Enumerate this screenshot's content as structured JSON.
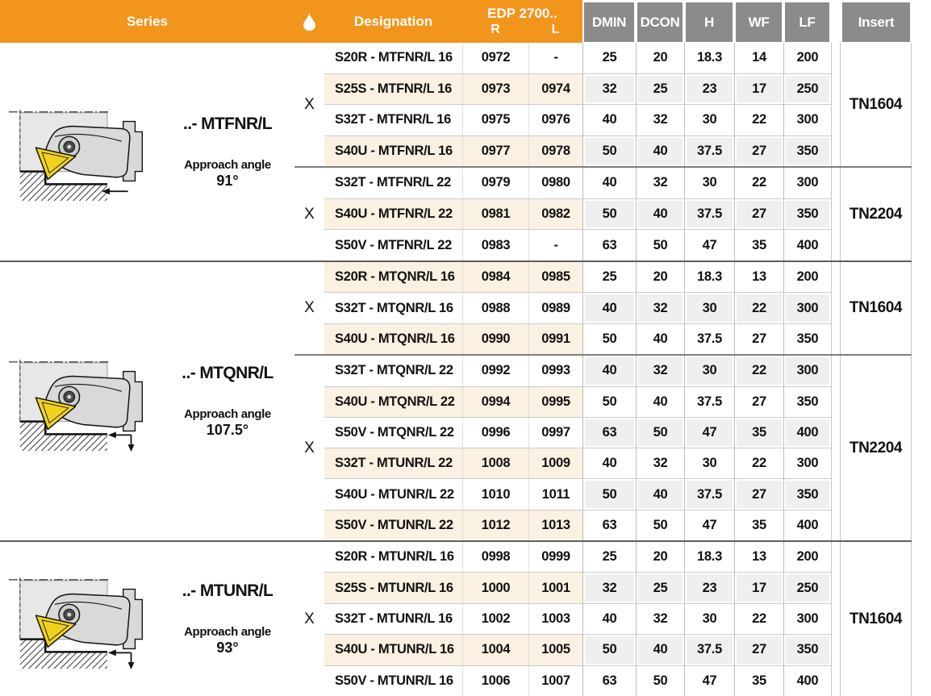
{
  "header": {
    "series": "Series",
    "coolant_icon": "droplet-icon",
    "designation": "Designation",
    "edp_title": "EDP 2700..",
    "edp_r": "R",
    "edp_l": "L",
    "dims": [
      "DMIN",
      "DCON",
      "H",
      "WF",
      "LF"
    ],
    "insert": "Insert"
  },
  "colors": {
    "header_orange": "#F2951C",
    "header_gray": "#8B8B8B",
    "row_beige": "#FBF1E2",
    "cell_gray": "#EFEFEF",
    "insert_yellow": "#F0D21E",
    "text": "#111111"
  },
  "groups": [
    {
      "series_name": "..- MTFNR/L",
      "approach_label": "Approach angle",
      "approach_angle": "91°",
      "arrow_icon": "left-arrow",
      "subgroups": [
        {
          "coolant": "X",
          "insert": "TN1604",
          "rows": [
            {
              "designation": "S20R - MTFNR/L 16",
              "edp_r": "0972",
              "edp_l": "-",
              "dmin": "25",
              "dcon": "20",
              "h": "18.3",
              "wf": "14",
              "lf": "200",
              "left_shaded": false,
              "right_shaded": false
            },
            {
              "designation": "S25S - MTFNR/L 16",
              "edp_r": "0973",
              "edp_l": "0974",
              "dmin": "32",
              "dcon": "25",
              "h": "23",
              "wf": "17",
              "lf": "250",
              "left_shaded": true,
              "right_shaded": true
            },
            {
              "designation": "S32T - MTFNR/L 16",
              "edp_r": "0975",
              "edp_l": "0976",
              "dmin": "40",
              "dcon": "32",
              "h": "30",
              "wf": "22",
              "lf": "300",
              "left_shaded": false,
              "right_shaded": false
            },
            {
              "designation": "S40U - MTFNR/L 16",
              "edp_r": "0977",
              "edp_l": "0978",
              "dmin": "50",
              "dcon": "40",
              "h": "37.5",
              "wf": "27",
              "lf": "350",
              "left_shaded": true,
              "right_shaded": true
            }
          ]
        },
        {
          "coolant": "X",
          "insert": "TN2204",
          "rows": [
            {
              "designation": "S32T - MTFNR/L 22",
              "edp_r": "0979",
              "edp_l": "0980",
              "dmin": "40",
              "dcon": "32",
              "h": "30",
              "wf": "22",
              "lf": "300",
              "left_shaded": false,
              "right_shaded": false
            },
            {
              "designation": "S40U - MTFNR/L 22",
              "edp_r": "0981",
              "edp_l": "0982",
              "dmin": "50",
              "dcon": "40",
              "h": "37.5",
              "wf": "27",
              "lf": "350",
              "left_shaded": true,
              "right_shaded": true
            },
            {
              "designation": "S50V - MTFNR/L 22",
              "edp_r": "0983",
              "edp_l": "-",
              "dmin": "63",
              "dcon": "50",
              "h": "47",
              "wf": "35",
              "lf": "400",
              "left_shaded": false,
              "right_shaded": false
            }
          ]
        }
      ]
    },
    {
      "series_name": "..- MTQNR/L",
      "approach_label": "Approach angle",
      "approach_angle": "107.5°",
      "arrow_icon": "left-down-arrow",
      "subgroups": [
        {
          "coolant": "X",
          "insert": "TN1604",
          "rows": [
            {
              "designation": "S20R - MTQNR/L 16",
              "edp_r": "0984",
              "edp_l": "0985",
              "dmin": "25",
              "dcon": "20",
              "h": "18.3",
              "wf": "13",
              "lf": "200",
              "left_shaded": true,
              "right_shaded": false
            },
            {
              "designation": "S32T - MTQNR/L 16",
              "edp_r": "0988",
              "edp_l": "0989",
              "dmin": "40",
              "dcon": "32",
              "h": "30",
              "wf": "22",
              "lf": "300",
              "left_shaded": false,
              "right_shaded": true
            },
            {
              "designation": "S40U - MTQNR/L 16",
              "edp_r": "0990",
              "edp_l": "0991",
              "dmin": "50",
              "dcon": "40",
              "h": "37.5",
              "wf": "27",
              "lf": "350",
              "left_shaded": true,
              "right_shaded": false
            }
          ]
        },
        {
          "coolant": "X",
          "insert": "TN2204",
          "rows": [
            {
              "designation": "S32T - MTQNR/L 22",
              "edp_r": "0992",
              "edp_l": "0993",
              "dmin": "40",
              "dcon": "32",
              "h": "30",
              "wf": "22",
              "lf": "300",
              "left_shaded": false,
              "right_shaded": true
            },
            {
              "designation": "S40U - MTQNR/L 22",
              "edp_r": "0994",
              "edp_l": "0995",
              "dmin": "50",
              "dcon": "40",
              "h": "37.5",
              "wf": "27",
              "lf": "350",
              "left_shaded": true,
              "right_shaded": false
            },
            {
              "designation": "S50V - MTQNR/L 22",
              "edp_r": "0996",
              "edp_l": "0997",
              "dmin": "63",
              "dcon": "50",
              "h": "47",
              "wf": "35",
              "lf": "400",
              "left_shaded": false,
              "right_shaded": true
            },
            {
              "designation": "S32T - MTUNR/L 22",
              "edp_r": "1008",
              "edp_l": "1009",
              "dmin": "40",
              "dcon": "32",
              "h": "30",
              "wf": "22",
              "lf": "300",
              "left_shaded": true,
              "right_shaded": false
            },
            {
              "designation": "S40U - MTUNR/L 22",
              "edp_r": "1010",
              "edp_l": "1011",
              "dmin": "50",
              "dcon": "40",
              "h": "37.5",
              "wf": "27",
              "lf": "350",
              "left_shaded": false,
              "right_shaded": true
            },
            {
              "designation": "S50V - MTUNR/L 22",
              "edp_r": "1012",
              "edp_l": "1013",
              "dmin": "63",
              "dcon": "50",
              "h": "47",
              "wf": "35",
              "lf": "400",
              "left_shaded": true,
              "right_shaded": false
            }
          ]
        }
      ]
    },
    {
      "series_name": "..- MTUNR/L",
      "approach_label": "Approach angle",
      "approach_angle": "93°",
      "arrow_icon": "left-down-arrow",
      "subgroups": [
        {
          "coolant": "X",
          "insert": "TN1604",
          "rows": [
            {
              "designation": "S20R - MTUNR/L 16",
              "edp_r": "0998",
              "edp_l": "0999",
              "dmin": "25",
              "dcon": "20",
              "h": "18.3",
              "wf": "13",
              "lf": "200",
              "left_shaded": false,
              "right_shaded": false
            },
            {
              "designation": "S25S - MTUNR/L 16",
              "edp_r": "1000",
              "edp_l": "1001",
              "dmin": "32",
              "dcon": "25",
              "h": "23",
              "wf": "17",
              "lf": "250",
              "left_shaded": true,
              "right_shaded": true
            },
            {
              "designation": "S32T - MTUNR/L 16",
              "edp_r": "1002",
              "edp_l": "1003",
              "dmin": "40",
              "dcon": "32",
              "h": "30",
              "wf": "22",
              "lf": "300",
              "left_shaded": false,
              "right_shaded": false
            },
            {
              "designation": "S40U - MTUNR/L 16",
              "edp_r": "1004",
              "edp_l": "1005",
              "dmin": "50",
              "dcon": "40",
              "h": "37.5",
              "wf": "27",
              "lf": "350",
              "left_shaded": true,
              "right_shaded": true
            },
            {
              "designation": "S50V - MTUNR/L 16",
              "edp_r": "1006",
              "edp_l": "1007",
              "dmin": "63",
              "dcon": "50",
              "h": "47",
              "wf": "35",
              "lf": "400",
              "left_shaded": false,
              "right_shaded": false
            }
          ]
        }
      ]
    }
  ]
}
